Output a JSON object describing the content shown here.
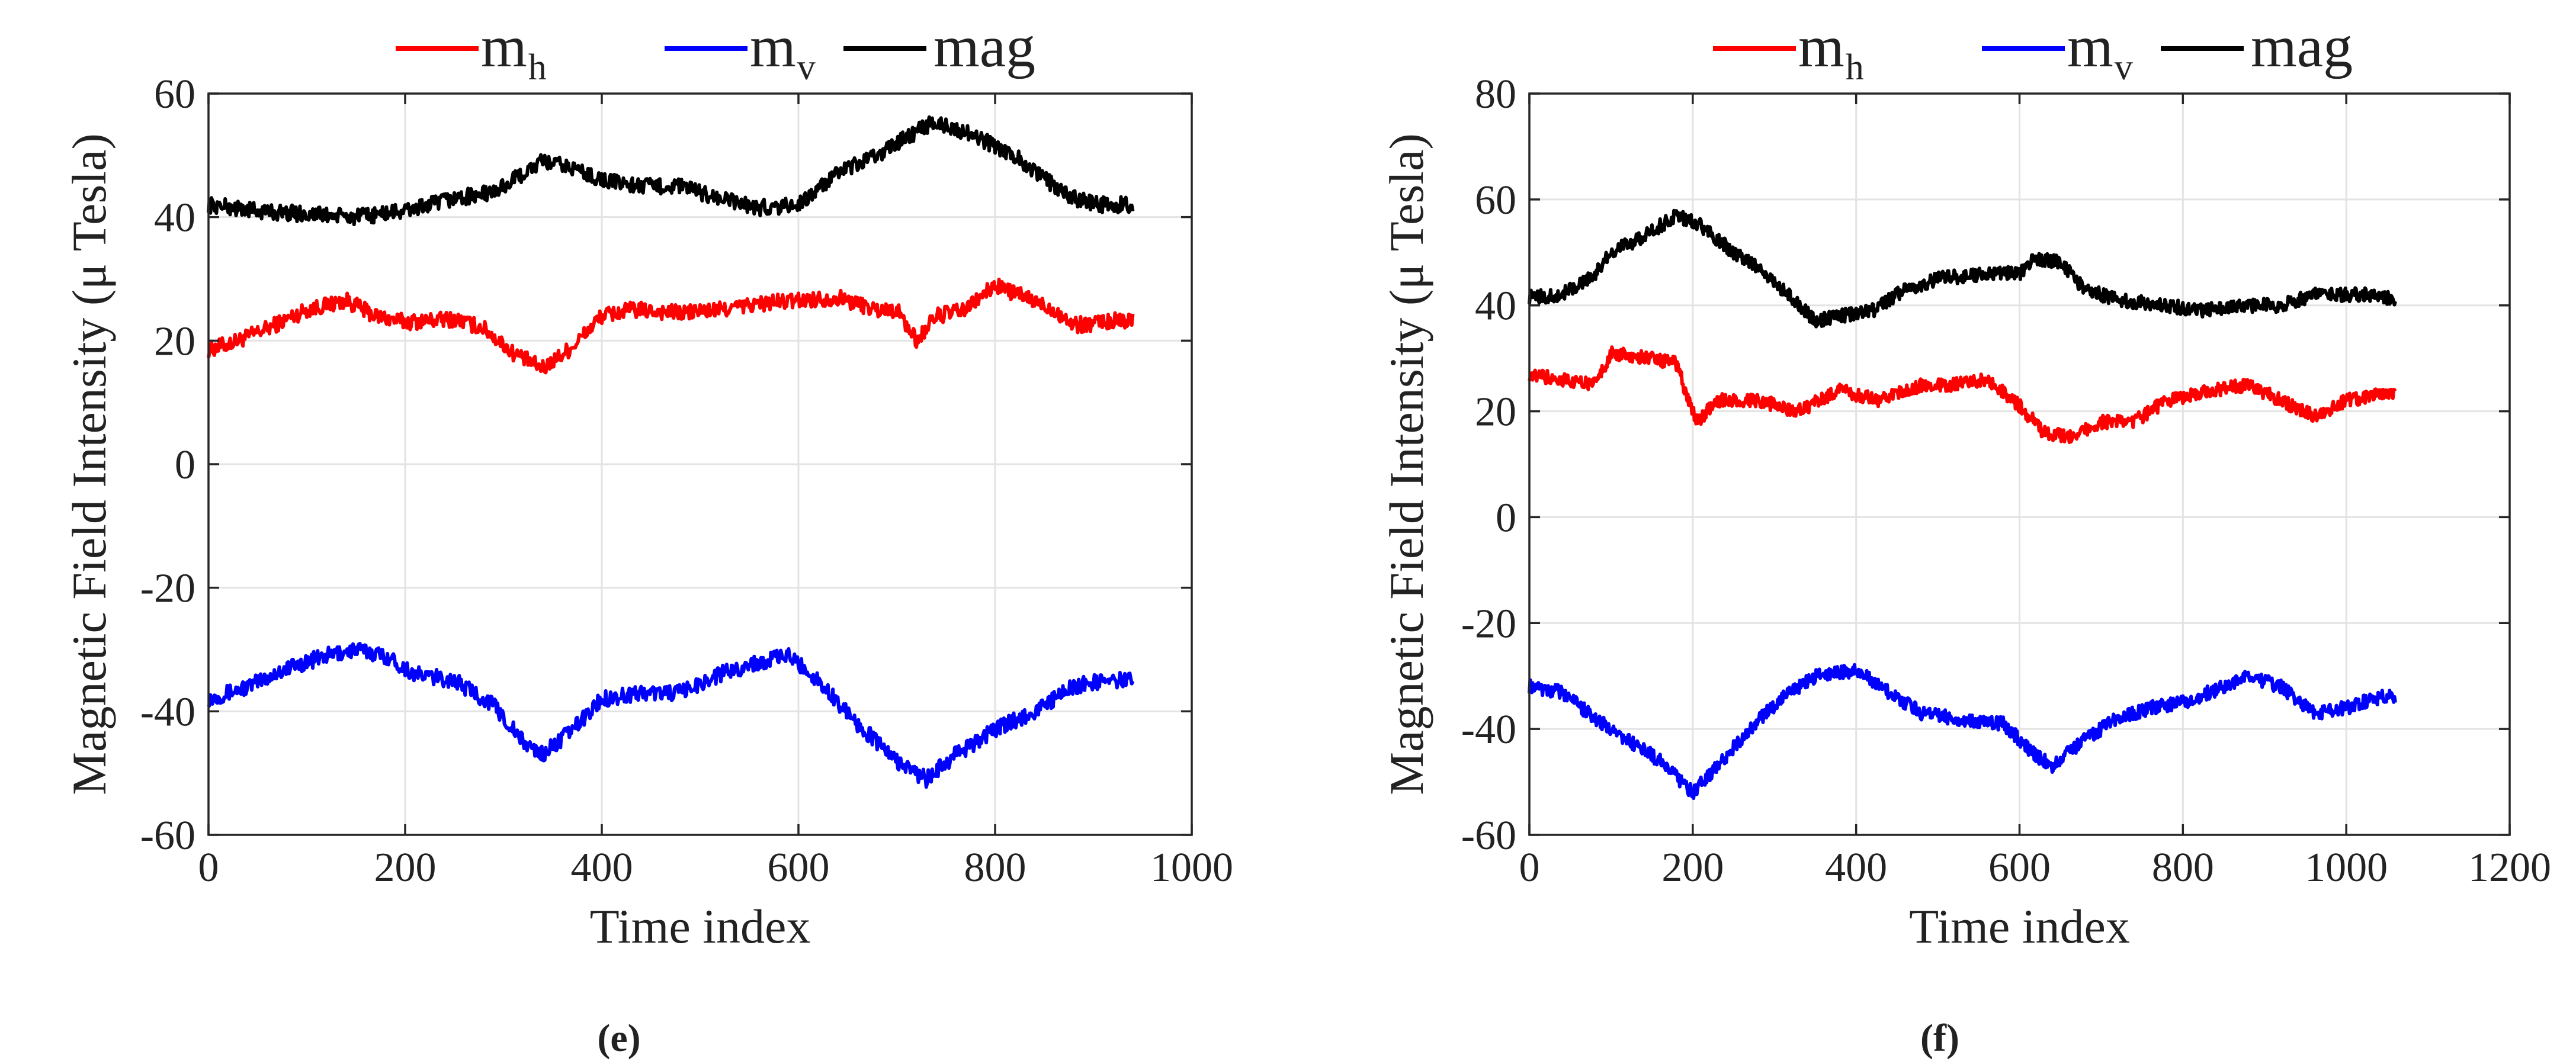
{
  "chart_data": [
    {
      "type": "line",
      "caption": "(e)",
      "xlabel": "Time index",
      "ylabel": "Magnetic Field Intensity (μ Tesla)",
      "xlim": [
        0,
        1000
      ],
      "ylim": [
        -60,
        60
      ],
      "xticks": [
        0,
        200,
        400,
        600,
        800,
        1000
      ],
      "yticks": [
        -60,
        -40,
        -20,
        0,
        20,
        40,
        60
      ],
      "grid": true,
      "legend_position": "top-center-outside",
      "series": [
        {
          "name": "m_h",
          "label_main": "m",
          "label_sub": "h",
          "color": "#ff0000",
          "points": [
            [
              0,
              18.5
            ],
            [
              30,
              20
            ],
            [
              60,
              22
            ],
            [
              100,
              25
            ],
            [
              140,
              26.5
            ],
            [
              170,
              24
            ],
            [
              200,
              23
            ],
            [
              250,
              23.5
            ],
            [
              280,
              22
            ],
            [
              310,
              18
            ],
            [
              340,
              15.5
            ],
            [
              370,
              19
            ],
            [
              400,
              24
            ],
            [
              430,
              25
            ],
            [
              480,
              24.5
            ],
            [
              520,
              25
            ],
            [
              560,
              26
            ],
            [
              600,
              26.5
            ],
            [
              640,
              27
            ],
            [
              680,
              25
            ],
            [
              700,
              25
            ],
            [
              720,
              20
            ],
            [
              740,
              24
            ],
            [
              770,
              25
            ],
            [
              800,
              29
            ],
            [
              830,
              27
            ],
            [
              860,
              25
            ],
            [
              880,
              22.5
            ],
            [
              910,
              23
            ],
            [
              940,
              23.5
            ]
          ]
        },
        {
          "name": "m_v",
          "label_main": "m",
          "label_sub": "v",
          "color": "#0000ff",
          "points": [
            [
              0,
              -38
            ],
            [
              40,
              -36
            ],
            [
              80,
              -33
            ],
            [
              120,
              -31
            ],
            [
              150,
              -30
            ],
            [
              180,
              -31
            ],
            [
              210,
              -34
            ],
            [
              250,
              -35
            ],
            [
              290,
              -39
            ],
            [
              320,
              -45
            ],
            [
              340,
              -47
            ],
            [
              370,
              -43
            ],
            [
              400,
              -38
            ],
            [
              440,
              -37
            ],
            [
              480,
              -37
            ],
            [
              520,
              -34
            ],
            [
              560,
              -32
            ],
            [
              590,
              -31
            ],
            [
              620,
              -35
            ],
            [
              660,
              -42
            ],
            [
              700,
              -48
            ],
            [
              730,
              -51
            ],
            [
              760,
              -47
            ],
            [
              800,
              -43
            ],
            [
              840,
              -40
            ],
            [
              880,
              -36
            ],
            [
              910,
              -35
            ],
            [
              940,
              -35
            ]
          ]
        },
        {
          "name": "mag",
          "label_main": "mag",
          "label_sub": "",
          "color": "#000000",
          "points": [
            [
              0,
              42
            ],
            [
              50,
              41
            ],
            [
              100,
              40.5
            ],
            [
              150,
              40
            ],
            [
              200,
              41
            ],
            [
              250,
              43
            ],
            [
              290,
              44
            ],
            [
              320,
              47
            ],
            [
              340,
              49
            ],
            [
              370,
              48
            ],
            [
              400,
              46
            ],
            [
              440,
              45
            ],
            [
              480,
              45
            ],
            [
              520,
              43
            ],
            [
              560,
              41.5
            ],
            [
              600,
              42
            ],
            [
              640,
              47
            ],
            [
              680,
              50
            ],
            [
              710,
              53
            ],
            [
              740,
              55.5
            ],
            [
              780,
              53
            ],
            [
              820,
              50
            ],
            [
              860,
              45
            ],
            [
              880,
              43
            ],
            [
              910,
              42
            ],
            [
              940,
              42
            ]
          ]
        }
      ]
    },
    {
      "type": "line",
      "caption": "(f)",
      "xlabel": "Time index",
      "ylabel": "Magnetic Field Intensity (μ Tesla)",
      "xlim": [
        0,
        1200
      ],
      "ylim": [
        -60,
        80
      ],
      "xticks": [
        0,
        200,
        400,
        600,
        800,
        1000,
        1200
      ],
      "yticks": [
        -60,
        -40,
        -20,
        0,
        20,
        40,
        60,
        80
      ],
      "grid": true,
      "legend_position": "top-center-outside",
      "series": [
        {
          "name": "m_h",
          "label_main": "m",
          "label_sub": "h",
          "color": "#ff0000",
          "points": [
            [
              0,
              27
            ],
            [
              40,
              26
            ],
            [
              80,
              25
            ],
            [
              100,
              31
            ],
            [
              150,
              30
            ],
            [
              180,
              29
            ],
            [
              195,
              22
            ],
            [
              205,
              18
            ],
            [
              230,
              22
            ],
            [
              280,
              22
            ],
            [
              330,
              20
            ],
            [
              380,
              24
            ],
            [
              430,
              22
            ],
            [
              480,
              25
            ],
            [
              520,
              25
            ],
            [
              560,
              26
            ],
            [
              600,
              21
            ],
            [
              630,
              16
            ],
            [
              660,
              15
            ],
            [
              700,
              18
            ],
            [
              740,
              18
            ],
            [
              780,
              22
            ],
            [
              840,
              24
            ],
            [
              880,
              25
            ],
            [
              920,
              22
            ],
            [
              960,
              19
            ],
            [
              1000,
              22
            ],
            [
              1040,
              23
            ],
            [
              1060,
              23
            ]
          ]
        },
        {
          "name": "m_v",
          "label_main": "m",
          "label_sub": "v",
          "color": "#0000ff",
          "points": [
            [
              0,
              -32
            ],
            [
              40,
              -33
            ],
            [
              80,
              -38
            ],
            [
              120,
              -42
            ],
            [
              160,
              -46
            ],
            [
              200,
              -52
            ],
            [
              230,
              -47
            ],
            [
              270,
              -40
            ],
            [
              310,
              -34
            ],
            [
              350,
              -30
            ],
            [
              400,
              -29
            ],
            [
              440,
              -33
            ],
            [
              480,
              -37
            ],
            [
              520,
              -38
            ],
            [
              580,
              -39
            ],
            [
              620,
              -45
            ],
            [
              640,
              -47
            ],
            [
              680,
              -42
            ],
            [
              720,
              -38
            ],
            [
              760,
              -36
            ],
            [
              800,
              -35
            ],
            [
              850,
              -32
            ],
            [
              880,
              -30
            ],
            [
              920,
              -32
            ],
            [
              960,
              -37
            ],
            [
              1000,
              -36
            ],
            [
              1040,
              -34
            ],
            [
              1060,
              -34
            ]
          ]
        },
        {
          "name": "mag",
          "label_main": "mag",
          "label_sub": "",
          "color": "#000000",
          "points": [
            [
              0,
              41.5
            ],
            [
              40,
              42
            ],
            [
              80,
              46
            ],
            [
              100,
              50
            ],
            [
              140,
              53
            ],
            [
              180,
              57
            ],
            [
              210,
              55
            ],
            [
              250,
              50
            ],
            [
              290,
              46
            ],
            [
              330,
              40
            ],
            [
              350,
              37
            ],
            [
              380,
              38
            ],
            [
              420,
              39
            ],
            [
              460,
              43
            ],
            [
              500,
              45
            ],
            [
              560,
              46
            ],
            [
              600,
              46
            ],
            [
              620,
              49
            ],
            [
              650,
              48
            ],
            [
              680,
              43
            ],
            [
              720,
              41
            ],
            [
              780,
              40
            ],
            [
              820,
              39
            ],
            [
              880,
              40
            ],
            [
              920,
              40
            ],
            [
              960,
              42
            ],
            [
              1000,
              42
            ],
            [
              1040,
              42
            ],
            [
              1060,
              41
            ]
          ]
        }
      ]
    }
  ]
}
